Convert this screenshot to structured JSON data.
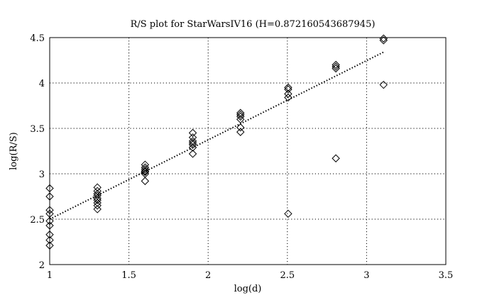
{
  "chart_data": {
    "type": "scatter",
    "title": "R/S plot for StarWarsIV16 (H=0.872160543687945)",
    "xlabel": "log(d)",
    "ylabel": "log(R/S)",
    "xlim": [
      1,
      3.5
    ],
    "ylim": [
      2,
      4.5
    ],
    "xticks": [
      1,
      1.5,
      2,
      2.5,
      3,
      3.5
    ],
    "xtick_labels": [
      "1",
      "1.5",
      "2",
      "2.5",
      "3",
      "3.5"
    ],
    "yticks": [
      2,
      2.5,
      3,
      3.5,
      4,
      4.5
    ],
    "ytick_labels": [
      "2",
      "2.5",
      "3",
      "3.5",
      "4",
      "4.5"
    ],
    "grid": true,
    "marker": "diamond-open",
    "points": [
      [
        1.0,
        2.84
      ],
      [
        1.0,
        2.75
      ],
      [
        1.0,
        2.6
      ],
      [
        1.0,
        2.56
      ],
      [
        1.0,
        2.48
      ],
      [
        1.0,
        2.43
      ],
      [
        1.0,
        2.33
      ],
      [
        1.0,
        2.27
      ],
      [
        1.0,
        2.21
      ],
      [
        1.301,
        2.85
      ],
      [
        1.301,
        2.81
      ],
      [
        1.301,
        2.78
      ],
      [
        1.301,
        2.76
      ],
      [
        1.301,
        2.73
      ],
      [
        1.301,
        2.71
      ],
      [
        1.301,
        2.68
      ],
      [
        1.301,
        2.65
      ],
      [
        1.301,
        2.61
      ],
      [
        1.602,
        3.1
      ],
      [
        1.602,
        3.07
      ],
      [
        1.602,
        3.05
      ],
      [
        1.602,
        3.03
      ],
      [
        1.602,
        3.02
      ],
      [
        1.602,
        3.0
      ],
      [
        1.602,
        2.92
      ],
      [
        1.903,
        3.45
      ],
      [
        1.903,
        3.4
      ],
      [
        1.903,
        3.36
      ],
      [
        1.903,
        3.34
      ],
      [
        1.903,
        3.32
      ],
      [
        1.903,
        3.29
      ],
      [
        1.903,
        3.22
      ],
      [
        2.204,
        3.67
      ],
      [
        2.204,
        3.65
      ],
      [
        2.204,
        3.63
      ],
      [
        2.204,
        3.6
      ],
      [
        2.204,
        3.51
      ],
      [
        2.204,
        3.46
      ],
      [
        2.505,
        3.95
      ],
      [
        2.505,
        3.93
      ],
      [
        2.505,
        3.88
      ],
      [
        2.505,
        3.84
      ],
      [
        2.505,
        2.56
      ],
      [
        2.806,
        4.2
      ],
      [
        2.806,
        4.18
      ],
      [
        2.806,
        4.16
      ],
      [
        2.806,
        3.17
      ],
      [
        3.107,
        4.49
      ],
      [
        3.107,
        4.47
      ],
      [
        3.107,
        3.98
      ]
    ],
    "fit_line": {
      "x": [
        1.0,
        3.107
      ],
      "y": [
        2.5,
        4.34
      ]
    }
  }
}
